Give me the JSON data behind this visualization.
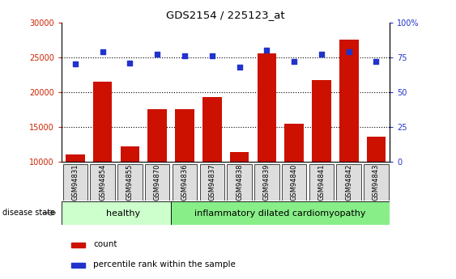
{
  "title": "GDS2154 / 225123_at",
  "samples": [
    "GSM94831",
    "GSM94854",
    "GSM94855",
    "GSM94870",
    "GSM94836",
    "GSM94837",
    "GSM94838",
    "GSM94839",
    "GSM94840",
    "GSM94841",
    "GSM94842",
    "GSM94843"
  ],
  "counts": [
    11000,
    21500,
    12200,
    17500,
    17500,
    19300,
    11400,
    25500,
    15500,
    21700,
    27500,
    13600
  ],
  "percentiles": [
    70,
    79,
    71,
    77,
    76,
    76,
    68,
    80,
    72,
    77,
    79,
    72
  ],
  "healthy_count": 4,
  "ylim_left": [
    10000,
    30000
  ],
  "ylim_right": [
    0,
    100
  ],
  "yticks_left": [
    10000,
    15000,
    20000,
    25000,
    30000
  ],
  "yticks_right": [
    0,
    25,
    50,
    75,
    100
  ],
  "bar_color": "#cc1100",
  "dot_color": "#2233cc",
  "healthy_color": "#ccffcc",
  "idcm_color": "#88ee88",
  "background_color": "#ffffff",
  "grid_color": "#000000",
  "label_count": "count",
  "label_percentile": "percentile rank within the sample",
  "label_disease": "disease state",
  "label_healthy": "healthy",
  "label_idcm": "inflammatory dilated cardiomyopathy",
  "left_axis_color": "#cc2200",
  "right_axis_color": "#2233cc",
  "tick_box_color": "#dddddd"
}
